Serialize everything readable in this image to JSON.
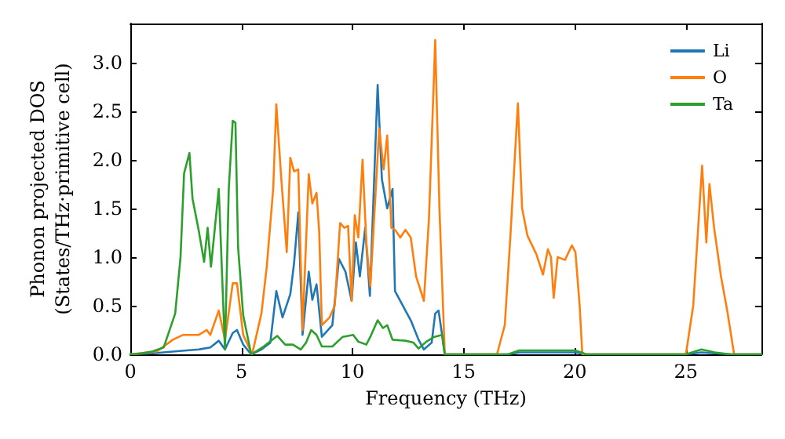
{
  "chart_data": {
    "type": "line",
    "xlabel": "Frequency (THz)",
    "ylabel": "Phonon projected DOS\n(States/THz·primitive cell)",
    "xlim": [
      0,
      28.4
    ],
    "xticks": [
      0,
      5,
      10,
      15,
      20,
      25
    ],
    "ylim": [
      0,
      3.4
    ],
    "yticks": [
      {
        "value": 0,
        "label": "0.0"
      },
      0.5,
      {
        "value": 1,
        "label": "1.0"
      },
      1.5,
      {
        "value": 2,
        "label": "2.0"
      },
      2.5,
      {
        "value": 3,
        "label": "3.0"
      }
    ],
    "grid": false,
    "legend": "top right",
    "marker": "none",
    "line_style": "solid",
    "series": [
      {
        "name": "Li",
        "color": "#1f77b4",
        "x": [
          0,
          1,
          2,
          3.08,
          3.6,
          3.98,
          4.26,
          4.61,
          4.8,
          5.08,
          5.44,
          5.9,
          6.3,
          6.57,
          6.85,
          7.2,
          7.37,
          7.56,
          7.75,
          8.03,
          8.19,
          8.38,
          8.62,
          9.09,
          9.39,
          9.68,
          9.96,
          10.15,
          10.33,
          10.57,
          10.78,
          11.13,
          11.32,
          11.56,
          11.8,
          11.91,
          12.38,
          12.62,
          12.97,
          13.21,
          13.56,
          13.72,
          13.87,
          14.03,
          14.15,
          17,
          17.5,
          18,
          19,
          20,
          20.3,
          20.5,
          25,
          25.7,
          26.3,
          27,
          28.4
        ],
        "values": [
          0,
          0.01,
          0.03,
          0.05,
          0.07,
          0.14,
          0.05,
          0.22,
          0.25,
          0.1,
          0,
          0.05,
          0.12,
          0.65,
          0.38,
          0.62,
          0.94,
          1.46,
          0.2,
          0.85,
          0.56,
          0.72,
          0.18,
          0.3,
          0.98,
          0.85,
          0.55,
          1.15,
          0.8,
          1.3,
          0.6,
          2.77,
          1.8,
          1.5,
          1.7,
          0.65,
          0.45,
          0.35,
          0.15,
          0.05,
          0.12,
          0.42,
          0.45,
          0.2,
          0,
          0,
          0.02,
          0.02,
          0.02,
          0.02,
          0.01,
          0,
          0,
          0.02,
          0.01,
          0,
          0
        ]
      },
      {
        "name": "O",
        "color": "#ff7f0e",
        "x": [
          0,
          1.2,
          1.91,
          2.38,
          3.08,
          3.44,
          3.6,
          3.98,
          4.26,
          4.61,
          4.8,
          5.08,
          5.48,
          5.9,
          6.14,
          6.43,
          6.57,
          6.78,
          7.04,
          7.2,
          7.37,
          7.56,
          7.75,
          8.03,
          8.19,
          8.38,
          8.5,
          8.62,
          8.97,
          9.2,
          9.44,
          9.63,
          9.8,
          9.96,
          10.1,
          10.26,
          10.45,
          10.62,
          10.8,
          11.2,
          11.4,
          11.56,
          11.75,
          11.91,
          12.15,
          12.38,
          12.62,
          12.86,
          13.21,
          13.44,
          13.72,
          13.91,
          14.15,
          16.5,
          16.85,
          17.1,
          17.44,
          17.63,
          17.87,
          18.27,
          18.57,
          18.79,
          18.93,
          19.05,
          19.23,
          19.56,
          19.87,
          20.03,
          20.22,
          20.34,
          25,
          25.33,
          25.73,
          25.92,
          26.06,
          26.27,
          26.58,
          26.86,
          27.17,
          28.4
        ],
        "values": [
          0,
          0.03,
          0.15,
          0.2,
          0.2,
          0.25,
          0.2,
          0.45,
          0.15,
          0.73,
          0.73,
          0.2,
          0,
          0.42,
          0.9,
          1.7,
          2.57,
          1.85,
          1.05,
          2.02,
          1.88,
          1.9,
          0.25,
          1.85,
          1.55,
          1.66,
          1.26,
          0.3,
          0.38,
          0.5,
          1.35,
          1.3,
          1.32,
          0.55,
          1.43,
          1.2,
          2,
          1.15,
          0.7,
          2.32,
          1.9,
          2.25,
          1.3,
          1.28,
          1.2,
          1.28,
          1.2,
          0.8,
          0.55,
          1.4,
          3.23,
          1.5,
          0,
          0,
          0.3,
          1.2,
          2.58,
          1.5,
          1.22,
          1.03,
          0.82,
          1.08,
          1,
          0.58,
          1,
          0.97,
          1.12,
          1.05,
          0.5,
          0,
          0,
          0.5,
          1.94,
          1.15,
          1.75,
          1.3,
          0.8,
          0.45,
          0,
          0
        ]
      },
      {
        "name": "Ta",
        "color": "#2ca02c",
        "x": [
          0,
          0.5,
          1,
          1.5,
          2.02,
          2.26,
          2.42,
          2.66,
          2.8,
          3.08,
          3.32,
          3.48,
          3.63,
          3.98,
          4.26,
          4.43,
          4.61,
          4.73,
          4.85,
          5.08,
          5.44,
          6.0,
          6.61,
          6.97,
          7.32,
          7.67,
          7.91,
          8.14,
          8.38,
          8.62,
          9.09,
          9.56,
          10.03,
          10.26,
          10.62,
          10.8,
          11.13,
          11.37,
          11.56,
          11.8,
          12.38,
          12.74,
          12.97,
          13.32,
          13.68,
          14.03,
          14.15,
          17,
          17.5,
          18,
          19,
          20,
          20.3,
          20.5,
          25,
          25.7,
          26.3,
          27,
          28.4
        ],
        "values": [
          0,
          0.01,
          0.03,
          0.07,
          0.42,
          1,
          1.86,
          2.07,
          1.6,
          1.27,
          0.95,
          1.3,
          0.9,
          1.7,
          0.05,
          1.7,
          2.4,
          2.38,
          1.1,
          0.4,
          0,
          0.08,
          0.19,
          0.1,
          0.1,
          0.05,
          0.12,
          0.25,
          0.2,
          0.08,
          0.08,
          0.18,
          0.2,
          0.13,
          0.1,
          0.18,
          0.35,
          0.27,
          0.3,
          0.15,
          0.14,
          0.12,
          0.06,
          0.13,
          0.18,
          0.2,
          0,
          0,
          0.04,
          0.04,
          0.04,
          0.04,
          0.02,
          0,
          0,
          0.05,
          0.02,
          0,
          0
        ]
      }
    ]
  }
}
